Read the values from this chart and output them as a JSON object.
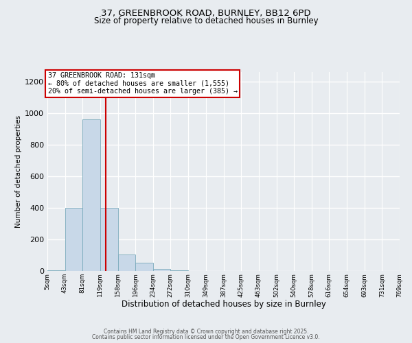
{
  "title": "37, GREENBROOK ROAD, BURNLEY, BB12 6PD",
  "subtitle": "Size of property relative to detached houses in Burnley",
  "xlabel": "Distribution of detached houses by size in Burnley",
  "ylabel": "Number of detached properties",
  "bin_edges": [
    5,
    43,
    81,
    119,
    158,
    196,
    234,
    272,
    310,
    349,
    387,
    425,
    463,
    502,
    540,
    578,
    616,
    654,
    693,
    731,
    769
  ],
  "counts": [
    5,
    400,
    960,
    400,
    105,
    50,
    15,
    3,
    0,
    0,
    0,
    0,
    0,
    0,
    0,
    0,
    0,
    0,
    0,
    0
  ],
  "bar_color": "#c8d8e8",
  "bar_edge_color": "#7aaabb",
  "property_size": 131,
  "red_line_color": "#cc0000",
  "annotation_line1": "37 GREENBROOK ROAD: 131sqm",
  "annotation_line2": "← 80% of detached houses are smaller (1,555)",
  "annotation_line3": "20% of semi-detached houses are larger (385) →",
  "annotation_box_color": "#ffffff",
  "annotation_box_edge": "#cc0000",
  "ylim": [
    0,
    1260
  ],
  "yticks": [
    0,
    200,
    400,
    600,
    800,
    1000,
    1200
  ],
  "tick_labels": [
    "5sqm",
    "43sqm",
    "81sqm",
    "119sqm",
    "158sqm",
    "196sqm",
    "234sqm",
    "272sqm",
    "310sqm",
    "349sqm",
    "387sqm",
    "425sqm",
    "463sqm",
    "502sqm",
    "540sqm",
    "578sqm",
    "616sqm",
    "654sqm",
    "693sqm",
    "731sqm",
    "769sqm"
  ],
  "background_color": "#e8ecf0",
  "plot_background": "#e8ecf0",
  "grid_color": "#ffffff",
  "footer_line1": "Contains HM Land Registry data © Crown copyright and database right 2025.",
  "footer_line2": "Contains public sector information licensed under the Open Government Licence v3.0."
}
